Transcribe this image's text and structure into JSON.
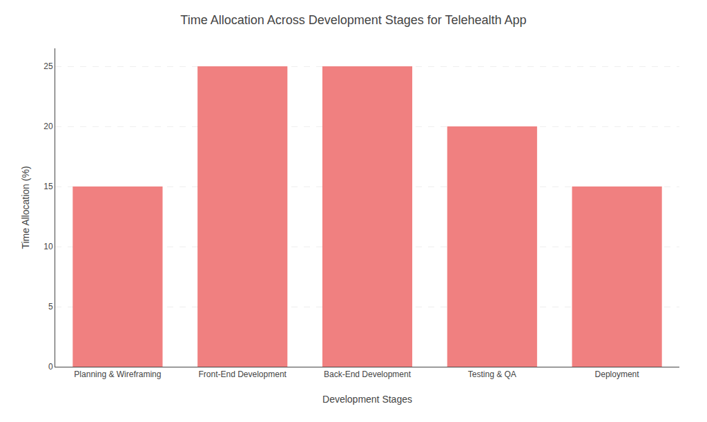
{
  "chart_data": {
    "type": "bar",
    "title": "Time Allocation Across Development Stages for Telehealth App",
    "xlabel": "Development Stages",
    "ylabel": "Time Allocation (%)",
    "categories": [
      "Planning & Wireframing",
      "Front-End Development",
      "Back-End Development",
      "Testing & QA",
      "Deployment"
    ],
    "values": [
      15,
      25,
      25,
      20,
      15
    ],
    "color": "#F08080",
    "ylim": [
      0,
      26.5
    ],
    "yticks": [
      0,
      5,
      10,
      15,
      20,
      25
    ],
    "grid": true
  }
}
